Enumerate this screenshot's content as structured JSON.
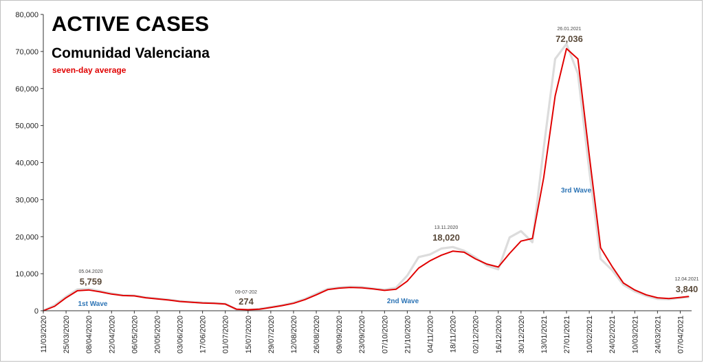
{
  "chart_data": {
    "type": "line",
    "title": "ACTIVE CASES",
    "subtitle": "Comunidad Valenciana",
    "note": "seven-day average",
    "ylim": [
      0,
      80000
    ],
    "yticks": [
      "0",
      "10,000",
      "20,000",
      "30,000",
      "40,000",
      "50,000",
      "60,000",
      "70,000",
      "80,000"
    ],
    "xticks": [
      "11/03/2020",
      "25/03/2020",
      "08/04/2020",
      "22/04/2020",
      "06/05/2020",
      "20/05/2020",
      "03/06/2020",
      "17/06/2020",
      "01/07/2020",
      "15/07/2020",
      "29/07/2020",
      "12/08/2020",
      "26/08/2020",
      "09/09/2020",
      "23/09/2020",
      "07/10/2020",
      "21/10/2020",
      "04/11/2020",
      "18/11/2020",
      "02/12/2020",
      "16/12/2020",
      "30/12/2020",
      "13/01/2021",
      "27/01/2021",
      "10/02/2021",
      "24/02/2021",
      "10/03/2021",
      "24/03/2021",
      "07/04/2021"
    ],
    "x": [
      "11/03/2020",
      "18/03/2020",
      "25/03/2020",
      "01/04/2020",
      "08/04/2020",
      "15/04/2020",
      "22/04/2020",
      "29/04/2020",
      "06/05/2020",
      "13/05/2020",
      "20/05/2020",
      "27/05/2020",
      "03/06/2020",
      "10/06/2020",
      "17/06/2020",
      "24/06/2020",
      "01/07/2020",
      "08/07/2020",
      "15/07/2020",
      "22/07/2020",
      "29/07/2020",
      "05/08/2020",
      "12/08/2020",
      "19/08/2020",
      "26/08/2020",
      "02/09/2020",
      "09/09/2020",
      "16/09/2020",
      "23/09/2020",
      "30/09/2020",
      "07/10/2020",
      "14/10/2020",
      "21/10/2020",
      "28/10/2020",
      "04/11/2020",
      "11/11/2020",
      "18/11/2020",
      "25/11/2020",
      "02/12/2020",
      "09/12/2020",
      "16/12/2020",
      "23/12/2020",
      "30/12/2020",
      "06/01/2021",
      "13/01/2021",
      "20/01/2021",
      "27/01/2021",
      "03/02/2021",
      "10/02/2021",
      "17/02/2021",
      "24/02/2021",
      "03/03/2021",
      "10/03/2021",
      "17/03/2021",
      "24/03/2021",
      "31/03/2021",
      "07/04/2021",
      "12/04/2021"
    ],
    "series": [
      {
        "name": "",
        "color": "#e00000",
        "values": [
          0,
          1200,
          3500,
          5400,
          5600,
          5100,
          4500,
          4100,
          4000,
          3500,
          3200,
          2900,
          2500,
          2300,
          2100,
          2000,
          1800,
          400,
          274,
          400,
          900,
          1400,
          2000,
          3000,
          4300,
          5700,
          6100,
          6300,
          6200,
          5900,
          5500,
          5800,
          8000,
          11500,
          13500,
          15000,
          16100,
          15800,
          14000,
          12600,
          11800,
          15500,
          18800,
          19500,
          36000,
          58000,
          70800,
          68000,
          42000,
          17000,
          12000,
          7500,
          5600,
          4300,
          3500,
          3300,
          3600,
          3840
        ]
      },
      {
        "name": "",
        "color": "#dcdcdc",
        "values": [
          0,
          1500,
          3800,
          5800,
          5900,
          5300,
          4700,
          4200,
          4100,
          3600,
          3300,
          3000,
          2600,
          2400,
          2200,
          2100,
          1900,
          300,
          200,
          500,
          1000,
          1500,
          2200,
          3200,
          4600,
          5900,
          6300,
          6500,
          6400,
          6000,
          5700,
          6200,
          9500,
          14500,
          15200,
          16800,
          17200,
          16200,
          14400,
          12200,
          11200,
          19800,
          21500,
          18500,
          44000,
          68000,
          72036,
          64000,
          38000,
          14000,
          11000,
          7000,
          5200,
          4000,
          3200,
          3100,
          3500,
          3700
        ]
      }
    ],
    "annotations": [
      {
        "date": "05.04.2020",
        "value": "5,759"
      },
      {
        "date": "09-07-202",
        "value": "274"
      },
      {
        "date": "13.11.2020",
        "value": "18,020"
      },
      {
        "date": "26.01.2021",
        "value": "72,036"
      },
      {
        "date": "12.04.2021",
        "value": "3,840"
      }
    ],
    "wave_labels": [
      "1st Wave",
      "2nd Wave",
      "3rd Wave"
    ],
    "grid": false,
    "legend": "none"
  }
}
